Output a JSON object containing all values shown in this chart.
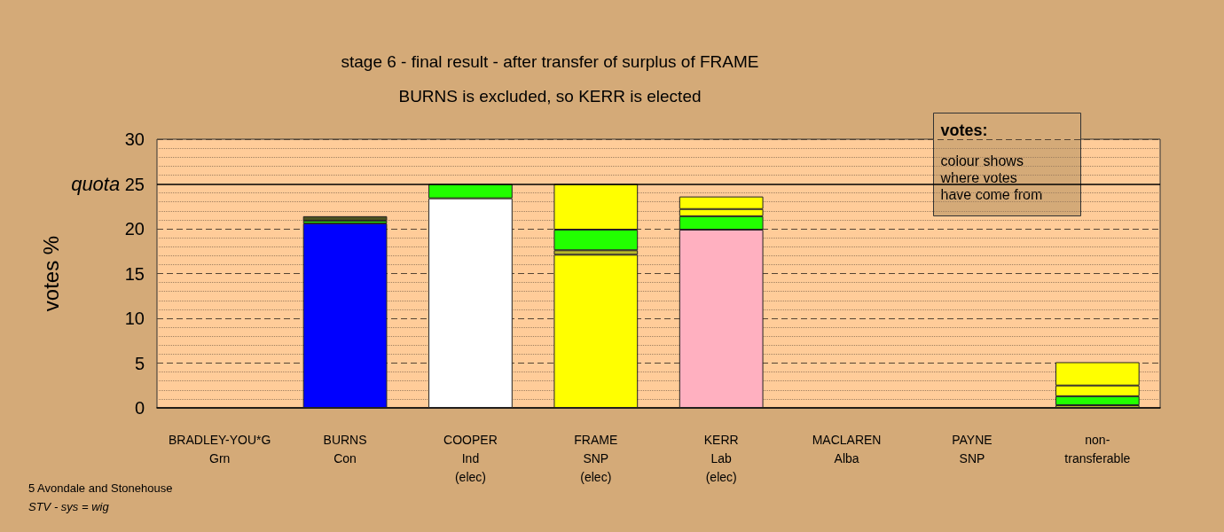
{
  "chart_data": {
    "type": "bar",
    "stacked": true,
    "title": "stage 6 - final result - after transfer of surplus of FRAME",
    "subtitle": "BURNS is excluded, so KERR is elected",
    "ylabel": "votes %",
    "categories": [
      "BRADLEY-YOU*G\nGrn",
      "BURNS\nCon",
      "COOPER\nInd\n(elec)",
      "FRAME\nSNP\n(elec)",
      "KERR\nLab\n(elec)",
      "MACLAREN\nAlba",
      "PAYNE\nSNP",
      "non-\ntransferable"
    ],
    "series": [
      {
        "colors": [
          "#ffff00",
          "#0000ff",
          "#ffffff",
          "#ffff00",
          "#ffb0c0",
          "#b8b82a",
          "#ffff00",
          "#b8b82a"
        ],
        "values": [
          null,
          20.6,
          23.4,
          17.1,
          19.9,
          null,
          null,
          0.3
        ]
      },
      {
        "colors": [
          "#22ff00",
          "#22ff00",
          "#22ff00",
          "#b8b82a",
          "#22ff00",
          "#22ff00",
          "#22ff00",
          "#22ff00"
        ],
        "values": [
          null,
          0.3,
          1.6,
          0.5,
          1.5,
          null,
          null,
          1.0
        ]
      },
      {
        "colors": [
          "#4b5320",
          "#4b5320",
          "#4b5320",
          "#22ff00",
          "#ffff00",
          "#ffff00",
          "#ffff00",
          "#ffff00"
        ],
        "values": [
          null,
          0.5,
          null,
          2.3,
          0.8,
          null,
          null,
          1.2
        ]
      },
      {
        "colors": [
          "#ffff00",
          "#ffff00",
          "#ffff00",
          "#ffff00",
          "#ffff00",
          "#ffff00",
          "#ffff00",
          "#ffff00"
        ],
        "values": [
          null,
          null,
          null,
          5.1,
          1.4,
          null,
          null,
          2.6
        ]
      }
    ],
    "ylim": [
      0,
      30
    ],
    "yticks": [
      0,
      {
        "value": 1,
        "label": null
      },
      {
        "value": 2,
        "label": null
      },
      {
        "value": 3,
        "label": null
      },
      {
        "value": 4,
        "label": null
      },
      5,
      {
        "value": 6,
        "label": null
      },
      {
        "value": 7,
        "label": null
      },
      {
        "value": 8,
        "label": null
      },
      {
        "value": 9,
        "label": null
      },
      10,
      {
        "value": 11,
        "label": null
      },
      {
        "value": 12,
        "label": null
      },
      {
        "value": 13,
        "label": null
      },
      {
        "value": 14,
        "label": null
      },
      15,
      {
        "value": 16,
        "label": null
      },
      {
        "value": 17,
        "label": null
      },
      {
        "value": 18,
        "label": null
      },
      {
        "value": 19,
        "label": null
      },
      20,
      {
        "value": 21,
        "label": null
      },
      {
        "value": 22,
        "label": null
      },
      {
        "value": 23,
        "label": null
      },
      {
        "value": 24,
        "label": null
      },
      25,
      {
        "value": 26,
        "label": null
      },
      {
        "value": 27,
        "label": null
      },
      {
        "value": 28,
        "label": null
      },
      {
        "value": 29,
        "label": null
      },
      30
    ],
    "grid": "y",
    "ref_lines": [
      {
        "axis": "y",
        "value": 25,
        "label": "quota",
        "color": "#000000",
        "line_style": "solid"
      }
    ],
    "annotations": [
      "votes:",
      "colour shows\nwhere votes\nhave come from",
      "5 Avondale and Stonehouse",
      "STV - sys = wig"
    ]
  }
}
